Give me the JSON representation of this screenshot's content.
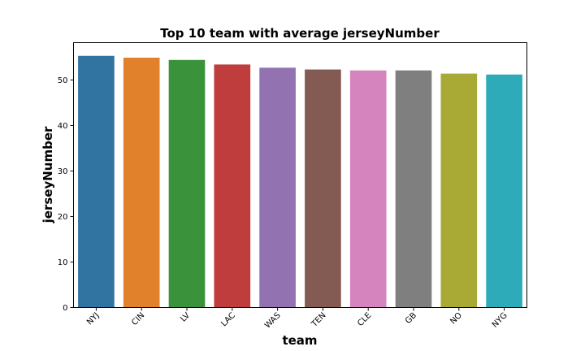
{
  "chart_data": {
    "type": "bar",
    "title": "Top 10 team with average jerseyNumber",
    "xlabel": "team",
    "ylabel": "jerseyNumber",
    "categories": [
      "NYJ",
      "CIN",
      "LV",
      "LAC",
      "WAS",
      "TEN",
      "CLE",
      "GB",
      "NO",
      "NYG"
    ],
    "values": [
      55.3,
      54.9,
      54.4,
      53.4,
      52.7,
      52.3,
      52.1,
      52.1,
      51.4,
      51.2
    ],
    "colors": [
      "#3274a1",
      "#e1812c",
      "#3a923a",
      "#c03d3e",
      "#9372b2",
      "#845b53",
      "#d684bd",
      "#7f7f7f",
      "#a9aa35",
      "#2eabb8"
    ],
    "ylim": [
      0,
      58.2
    ],
    "yticks": [
      0,
      10,
      20,
      30,
      40,
      50
    ],
    "grid": false,
    "legend": "none"
  }
}
